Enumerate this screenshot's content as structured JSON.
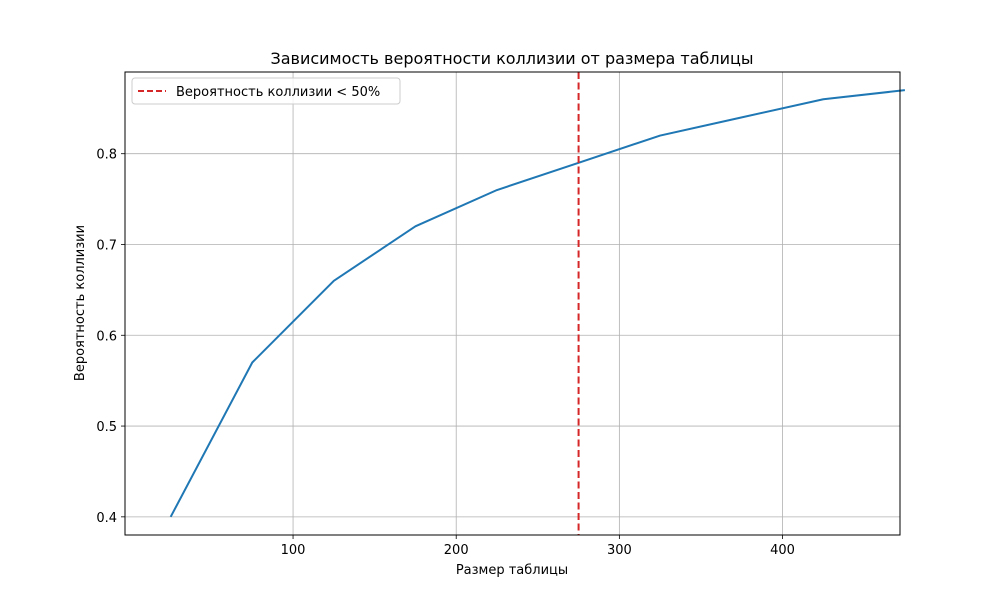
{
  "chart_data": {
    "type": "line",
    "title": "Зависимость вероятности коллизии от размера таблицы",
    "xlabel": "Размер таблицы",
    "ylabel": "Вероятность коллизии",
    "xlim": [
      -3,
      472
    ],
    "ylim": [
      0.38,
      0.89
    ],
    "xticks": [
      100,
      200,
      300,
      400
    ],
    "yticks": [
      0.4,
      0.5,
      0.6,
      0.7,
      0.8
    ],
    "xtick_labels": [
      "100",
      "200",
      "300",
      "400"
    ],
    "ytick_labels": [
      "0.4",
      "0.5",
      "0.6",
      "0.7",
      "0.8"
    ],
    "grid": true,
    "series": [
      {
        "color": "#1f77b4",
        "x": [
          25,
          75,
          125,
          175,
          225,
          275,
          325,
          375,
          425,
          475
        ],
        "y": [
          0.4,
          0.57,
          0.66,
          0.72,
          0.76,
          0.79,
          0.82,
          0.84,
          0.86,
          0.87
        ]
      }
    ],
    "vline": {
      "x": 275,
      "color": "#d62728",
      "style": "dashed",
      "label": "Вероятность коллизии < 50%"
    },
    "legend_position": "top-left"
  }
}
